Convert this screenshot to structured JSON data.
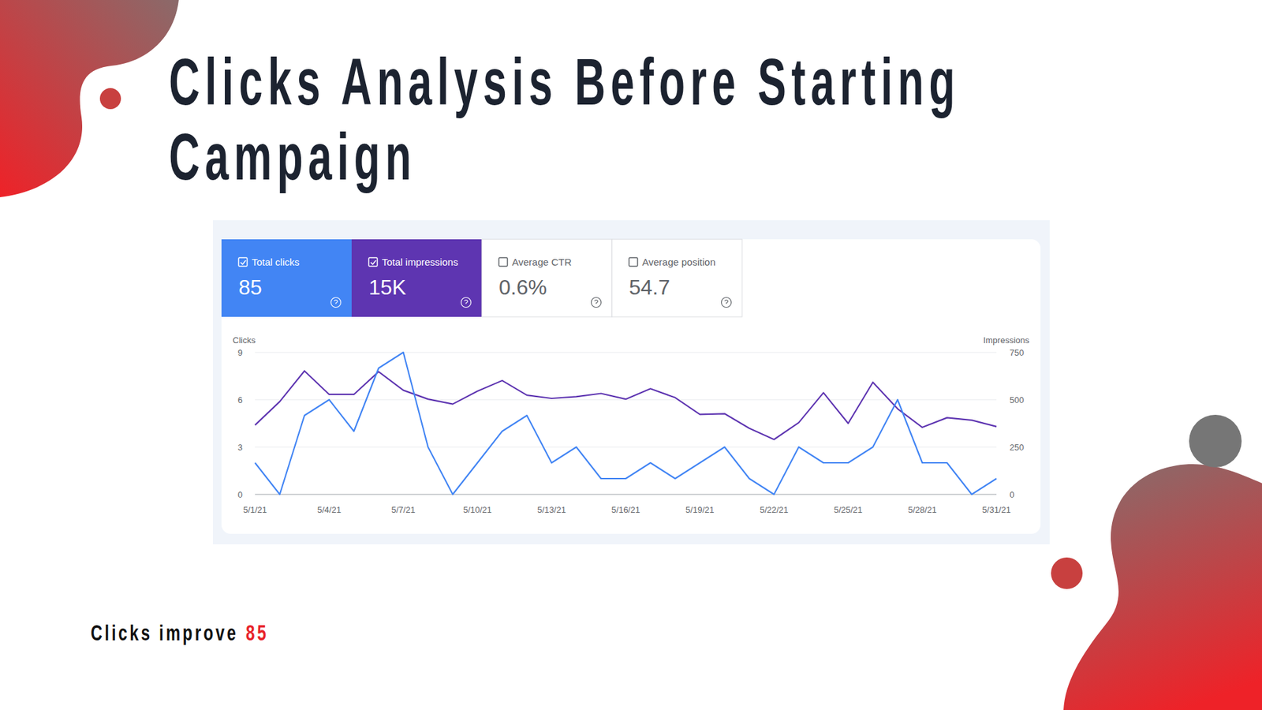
{
  "title": "Clicks Analysis Before Starting Campaign",
  "summary_cards": [
    {
      "label": "Total clicks",
      "value": "85",
      "selected": true,
      "color": "#4285f4"
    },
    {
      "label": "Total impressions",
      "value": "15K",
      "selected": true,
      "color": "#5e35b1"
    },
    {
      "label": "Average CTR",
      "value": "0.6%",
      "selected": false
    },
    {
      "label": "Average position",
      "value": "54.7",
      "selected": false
    }
  ],
  "chart_data": {
    "type": "line",
    "y_label": "Clicks",
    "y2_label": "Impressions",
    "categories": [
      "5/1/21",
      null,
      null,
      "5/4/21",
      null,
      null,
      "5/7/21",
      null,
      null,
      "5/10/21",
      null,
      null,
      "5/13/21",
      null,
      null,
      "5/16/21",
      null,
      null,
      "5/19/21",
      null,
      null,
      "5/22/21",
      null,
      null,
      "5/25/21",
      null,
      null,
      "5/28/21",
      null,
      null,
      "5/31/21"
    ],
    "series": [
      {
        "name": "Clicks",
        "color": "#4285f4",
        "values": [
          2,
          0,
          5,
          6,
          4,
          8,
          9,
          3,
          0,
          2,
          4,
          5,
          2,
          3,
          1,
          1,
          2,
          1,
          2,
          3,
          1,
          0,
          3,
          2,
          2,
          3,
          6,
          2,
          2,
          0,
          1
        ]
      },
      {
        "name": "Impressions",
        "color": "#5e35b1",
        "axis": "y2",
        "values": [
          366,
          490,
          652,
          528,
          528,
          648,
          550,
          503,
          477,
          545,
          601,
          524,
          507,
          516,
          533,
          503,
          558,
          511,
          422,
          426,
          349,
          290,
          379,
          537,
          375,
          592,
          452,
          354,
          405,
          392,
          358
        ]
      }
    ],
    "ylim": [
      0,
      9
    ],
    "yticks": [
      0,
      3,
      6,
      9
    ],
    "y2lim": [
      0,
      750
    ],
    "y2ticks": [
      0,
      250,
      500,
      750
    ],
    "grid": true
  },
  "footer": {
    "text": "Clicks improve",
    "value": "85"
  }
}
